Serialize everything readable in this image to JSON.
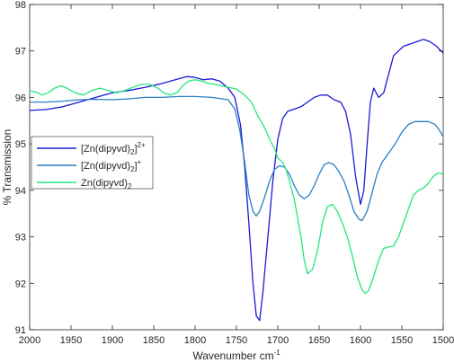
{
  "chart_data": {
    "type": "line",
    "xlabel": "Wavenumber cm",
    "xlabel_sup": "-1",
    "ylabel": "% Transmission",
    "xlim": [
      2000,
      1500
    ],
    "ylim": [
      91,
      98
    ],
    "x_ticks": [
      "2000",
      "1950",
      "1900",
      "1850",
      "1800",
      "1750",
      "1700",
      "1650",
      "1600",
      "1550",
      "1500"
    ],
    "y_ticks": [
      "91",
      "92",
      "93",
      "94",
      "95",
      "96",
      "97",
      "98"
    ],
    "grid": false,
    "legend_position": "left-middle",
    "series": [
      {
        "name": "[Zn(dipyvd)2]2+",
        "legend": {
          "base": "[Zn(dipyvd)",
          "sub": "2",
          "close": "]",
          "sup": "2+"
        },
        "color": "#1a1ad6",
        "points": [
          [
            2000,
            95.72
          ],
          [
            1980,
            95.74
          ],
          [
            1960,
            95.8
          ],
          [
            1940,
            95.9
          ],
          [
            1920,
            96.0
          ],
          [
            1900,
            96.1
          ],
          [
            1880,
            96.15
          ],
          [
            1860,
            96.22
          ],
          [
            1840,
            96.3
          ],
          [
            1820,
            96.4
          ],
          [
            1810,
            96.45
          ],
          [
            1800,
            96.43
          ],
          [
            1790,
            96.38
          ],
          [
            1780,
            96.4
          ],
          [
            1770,
            96.35
          ],
          [
            1760,
            96.2
          ],
          [
            1752,
            96.0
          ],
          [
            1745,
            95.4
          ],
          [
            1740,
            94.5
          ],
          [
            1735,
            93.3
          ],
          [
            1730,
            92.0
          ],
          [
            1726,
            91.3
          ],
          [
            1722,
            91.2
          ],
          [
            1718,
            91.8
          ],
          [
            1712,
            93.0
          ],
          [
            1706,
            94.2
          ],
          [
            1700,
            95.1
          ],
          [
            1694,
            95.55
          ],
          [
            1688,
            95.7
          ],
          [
            1680,
            95.75
          ],
          [
            1672,
            95.8
          ],
          [
            1664,
            95.9
          ],
          [
            1656,
            96.0
          ],
          [
            1648,
            96.05
          ],
          [
            1640,
            96.05
          ],
          [
            1632,
            95.95
          ],
          [
            1624,
            95.9
          ],
          [
            1618,
            95.7
          ],
          [
            1612,
            95.2
          ],
          [
            1606,
            94.3
          ],
          [
            1600,
            93.7
          ],
          [
            1596,
            94.0
          ],
          [
            1592,
            95.0
          ],
          [
            1588,
            95.9
          ],
          [
            1584,
            96.2
          ],
          [
            1578,
            96.0
          ],
          [
            1572,
            96.1
          ],
          [
            1566,
            96.5
          ],
          [
            1560,
            96.9
          ],
          [
            1554,
            97.0
          ],
          [
            1548,
            97.1
          ],
          [
            1540,
            97.15
          ],
          [
            1532,
            97.2
          ],
          [
            1524,
            97.25
          ],
          [
            1516,
            97.2
          ],
          [
            1508,
            97.1
          ],
          [
            1500,
            96.95
          ]
        ]
      },
      {
        "name": "[Zn(dipyvd)2]+",
        "legend": {
          "base": "[Zn(dipyvd)",
          "sub": "2",
          "close": "]",
          "sup": "+"
        },
        "color": "#2a7fc4",
        "points": [
          [
            2000,
            95.9
          ],
          [
            1980,
            95.9
          ],
          [
            1960,
            95.92
          ],
          [
            1940,
            95.95
          ],
          [
            1920,
            95.96
          ],
          [
            1900,
            95.95
          ],
          [
            1880,
            95.97
          ],
          [
            1860,
            96.0
          ],
          [
            1840,
            96.0
          ],
          [
            1820,
            96.02
          ],
          [
            1800,
            96.02
          ],
          [
            1780,
            96.0
          ],
          [
            1760,
            95.95
          ],
          [
            1752,
            95.75
          ],
          [
            1746,
            95.3
          ],
          [
            1740,
            94.6
          ],
          [
            1735,
            93.9
          ],
          [
            1730,
            93.55
          ],
          [
            1726,
            93.45
          ],
          [
            1722,
            93.55
          ],
          [
            1716,
            93.85
          ],
          [
            1710,
            94.2
          ],
          [
            1704,
            94.45
          ],
          [
            1698,
            94.53
          ],
          [
            1692,
            94.5
          ],
          [
            1686,
            94.35
          ],
          [
            1680,
            94.1
          ],
          [
            1674,
            93.9
          ],
          [
            1668,
            93.82
          ],
          [
            1662,
            93.9
          ],
          [
            1656,
            94.1
          ],
          [
            1650,
            94.35
          ],
          [
            1644,
            94.55
          ],
          [
            1638,
            94.6
          ],
          [
            1632,
            94.55
          ],
          [
            1626,
            94.4
          ],
          [
            1620,
            94.2
          ],
          [
            1614,
            93.9
          ],
          [
            1608,
            93.55
          ],
          [
            1602,
            93.38
          ],
          [
            1598,
            93.35
          ],
          [
            1592,
            93.55
          ],
          [
            1586,
            93.95
          ],
          [
            1580,
            94.35
          ],
          [
            1574,
            94.6
          ],
          [
            1566,
            94.8
          ],
          [
            1558,
            95.0
          ],
          [
            1550,
            95.25
          ],
          [
            1542,
            95.42
          ],
          [
            1534,
            95.48
          ],
          [
            1526,
            95.48
          ],
          [
            1518,
            95.48
          ],
          [
            1510,
            95.42
          ],
          [
            1504,
            95.28
          ],
          [
            1500,
            95.15
          ]
        ]
      },
      {
        "name": "Zn(dipyvd)2",
        "legend": {
          "base": "Zn(dipyvd)",
          "sub": "2",
          "close": "",
          "sup": ""
        },
        "color": "#22e87c",
        "points": [
          [
            2000,
            96.15
          ],
          [
            1990,
            96.1
          ],
          [
            1985,
            96.05
          ],
          [
            1978,
            96.1
          ],
          [
            1970,
            96.2
          ],
          [
            1962,
            96.25
          ],
          [
            1955,
            96.2
          ],
          [
            1945,
            96.1
          ],
          [
            1935,
            96.05
          ],
          [
            1925,
            96.15
          ],
          [
            1915,
            96.2
          ],
          [
            1905,
            96.15
          ],
          [
            1895,
            96.1
          ],
          [
            1885,
            96.15
          ],
          [
            1875,
            96.22
          ],
          [
            1865,
            96.28
          ],
          [
            1855,
            96.28
          ],
          [
            1845,
            96.2
          ],
          [
            1838,
            96.1
          ],
          [
            1830,
            96.05
          ],
          [
            1822,
            96.1
          ],
          [
            1815,
            96.25
          ],
          [
            1808,
            96.35
          ],
          [
            1800,
            96.38
          ],
          [
            1792,
            96.35
          ],
          [
            1784,
            96.3
          ],
          [
            1776,
            96.28
          ],
          [
            1768,
            96.25
          ],
          [
            1760,
            96.22
          ],
          [
            1750,
            96.18
          ],
          [
            1740,
            96.05
          ],
          [
            1732,
            95.9
          ],
          [
            1724,
            95.6
          ],
          [
            1716,
            95.35
          ],
          [
            1710,
            95.1
          ],
          [
            1704,
            94.9
          ],
          [
            1700,
            94.7
          ],
          [
            1694,
            94.6
          ],
          [
            1690,
            94.45
          ],
          [
            1686,
            94.2
          ],
          [
            1680,
            93.8
          ],
          [
            1676,
            93.4
          ],
          [
            1672,
            93.0
          ],
          [
            1668,
            92.5
          ],
          [
            1664,
            92.2
          ],
          [
            1658,
            92.3
          ],
          [
            1652,
            92.7
          ],
          [
            1646,
            93.3
          ],
          [
            1640,
            93.65
          ],
          [
            1634,
            93.7
          ],
          [
            1628,
            93.55
          ],
          [
            1622,
            93.3
          ],
          [
            1616,
            93.0
          ],
          [
            1610,
            92.6
          ],
          [
            1604,
            92.15
          ],
          [
            1598,
            91.85
          ],
          [
            1594,
            91.78
          ],
          [
            1590,
            91.85
          ],
          [
            1584,
            92.15
          ],
          [
            1578,
            92.5
          ],
          [
            1572,
            92.75
          ],
          [
            1566,
            92.78
          ],
          [
            1560,
            92.8
          ],
          [
            1554,
            93.0
          ],
          [
            1548,
            93.3
          ],
          [
            1542,
            93.6
          ],
          [
            1536,
            93.9
          ],
          [
            1530,
            94.0
          ],
          [
            1524,
            94.05
          ],
          [
            1518,
            94.15
          ],
          [
            1512,
            94.3
          ],
          [
            1506,
            94.38
          ],
          [
            1500,
            94.35
          ]
        ]
      }
    ]
  }
}
